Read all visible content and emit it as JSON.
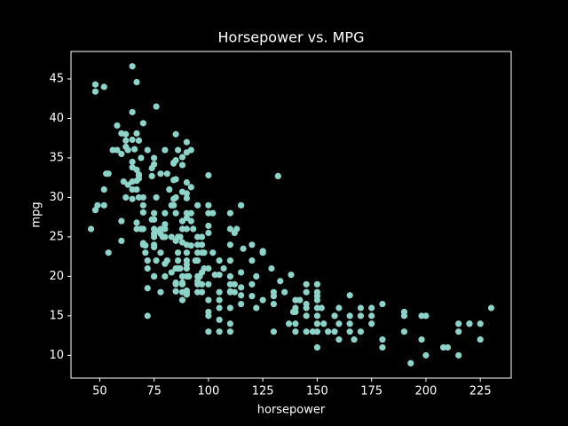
{
  "chart_data": {
    "type": "scatter",
    "title": "Horsepower vs. MPG",
    "x_label": "horsepower",
    "y_label": "mpg",
    "color": "#8dd3c7",
    "xlim": [
      36.8,
      239.2
    ],
    "ylim": [
      7.12,
      48.48
    ],
    "xticks": [
      50,
      75,
      100,
      125,
      150,
      175,
      200,
      225
    ],
    "yticks": [
      10,
      15,
      20,
      25,
      30,
      35,
      40,
      45
    ],
    "x": [
      130,
      165,
      150,
      150,
      140,
      198,
      220,
      215,
      225,
      190,
      170,
      160,
      150,
      95,
      95,
      97,
      85,
      88,
      46,
      87,
      90,
      113,
      90,
      215,
      200,
      210,
      193,
      90,
      95,
      100,
      105,
      100,
      88,
      165,
      175,
      153,
      180,
      170,
      110,
      72,
      86,
      70,
      76,
      65,
      69,
      60,
      70,
      80,
      54,
      90,
      86,
      165,
      150,
      208,
      155,
      160,
      190,
      97,
      130,
      140,
      112,
      76,
      87,
      69,
      86,
      92,
      97,
      80,
      145,
      137,
      198,
      158,
      215,
      225,
      105,
      88,
      95,
      150,
      167,
      180,
      88,
      72,
      94,
      90,
      85,
      107,
      90,
      145,
      230,
      49,
      75,
      91,
      112,
      110,
      122,
      95,
      100,
      67,
      80,
      65,
      75,
      110,
      140,
      150,
      150,
      140,
      83,
      67,
      78,
      52,
      61,
      75,
      75,
      97,
      93,
      95,
      72,
      170,
      145,
      148,
      110,
      105,
      95,
      110,
      129,
      75,
      100,
      78,
      96,
      71,
      97,
      70,
      95,
      98,
      58,
      86,
      81,
      79,
      83,
      120,
      152,
      100,
      105,
      81,
      90,
      52,
      62,
      70,
      53,
      78,
      110,
      72,
      150,
      80,
      145,
      145,
      130,
      110,
      105,
      100,
      78,
      88,
      83,
      140,
      139,
      85,
      88,
      100,
      90,
      85,
      120,
      68,
      90,
      75,
      95,
      105,
      85,
      97,
      103,
      115,
      133,
      115,
      85,
      88,
      90,
      110,
      130,
      138,
      125,
      71,
      80,
      90,
      115,
      115,
      90,
      90,
      88,
      90,
      90,
      78,
      90,
      75,
      92,
      75,
      65,
      65,
      48,
      67,
      67,
      76,
      67,
      67,
      62,
      132,
      100,
      88,
      84,
      84,
      92,
      84,
      65,
      60,
      65,
      48,
      48,
      62,
      68,
      67,
      65,
      65,
      74,
      75,
      75,
      100,
      74,
      80,
      76,
      116,
      88,
      85,
      85,
      85,
      84,
      90,
      74,
      68,
      68,
      63,
      70,
      88,
      75,
      70,
      85,
      92,
      84,
      52,
      82,
      58,
      60,
      62,
      63,
      66,
      68,
      70,
      72,
      54,
      56,
      60,
      80,
      86,
      92,
      100,
      102,
      110,
      115,
      125,
      110,
      112,
      120,
      165,
      190,
      200,
      220,
      175,
      175,
      180,
      160,
      158,
      150,
      145,
      142,
      135,
      120,
      125,
      122,
      110,
      105,
      100,
      102,
      98
    ],
    "y": [
      18,
      15,
      18,
      16,
      17,
      15,
      14,
      14,
      14,
      15,
      15,
      14,
      15,
      24,
      22,
      18,
      21,
      27,
      26,
      25,
      24,
      26,
      21,
      10,
      10,
      11,
      9,
      28,
      25,
      19,
      16,
      17,
      19,
      14,
      14,
      14,
      12,
      13,
      18,
      22,
      23,
      30,
      30,
      31,
      35,
      27,
      26,
      25,
      23,
      20,
      21,
      13,
      17,
      11,
      13,
      12,
      13,
      19,
      13,
      13,
      18,
      22,
      21,
      26,
      22,
      28,
      23,
      28,
      13,
      14,
      12,
      13,
      13,
      12,
      18,
      18,
      23,
      11,
      12,
      11,
      20,
      21,
      22,
      18,
      19,
      21,
      26,
      15,
      16,
      29,
      24,
      20,
      19,
      24,
      20,
      20,
      15,
      31,
      26,
      32,
      25,
      16,
      16,
      13,
      14,
      14,
      29,
      26,
      26,
      31,
      32,
      28,
      26,
      24,
      26,
      19,
      15,
      16,
      16,
      13,
      14,
      17,
      18,
      19,
      21,
      20,
      29,
      23,
      20,
      23,
      25,
      24,
      29,
      23,
      36,
      25,
      33,
      25,
      25,
      17.5,
      16,
      15.5,
      14.5,
      22,
      22,
      29,
      30,
      29,
      33,
      33,
      20,
      18.5,
      17.5,
      20,
      19,
      16.5,
      16.5,
      13,
      13,
      13,
      18,
      17,
      20.5,
      15.5,
      15.5,
      24.5,
      26,
      25.5,
      30.5,
      30,
      22,
      32.8,
      37,
      20,
      19.4,
      20.2,
      19.2,
      20.5,
      20.2,
      20.5,
      19.4,
      18.6,
      18.1,
      19.2,
      17.7,
      18.1,
      17.5,
      20.2,
      23.2,
      23.9,
      21.6,
      21.5,
      17.6,
      16.5,
      18.2,
      31.9,
      34.1,
      35.7,
      27.4,
      25.4,
      23,
      27.2,
      23.9,
      34.2,
      34.5,
      37.3,
      28.4,
      26.8,
      33.5,
      41.5,
      38.1,
      32.1,
      37.2,
      32.7,
      26.4,
      24.3,
      34.3,
      29.8,
      31.3,
      32.2,
      46.6,
      24.5,
      40.8,
      44.3,
      43.4,
      36.4,
      30,
      44.6,
      33.8,
      29.8,
      32.7,
      23.7,
      35,
      32.8,
      27.2,
      26.6,
      25.8,
      23.5,
      35.1,
      32.3,
      38,
      34.7,
      34.4,
      29.9,
      33.7,
      32.4,
      32.9,
      31.6,
      28.1,
      30.7,
      25.4,
      24.2,
      28,
      27,
      29,
      44,
      31,
      39.1,
      38.1,
      38,
      36,
      36.1,
      37.2,
      39.4,
      36,
      33,
      36,
      35.5,
      36,
      36,
      36,
      28,
      28,
      28,
      29,
      23,
      26,
      25.5,
      24,
      17.6,
      15.5,
      15,
      14,
      16,
      15,
      16.5,
      16,
      15,
      19,
      18,
      17,
      18,
      19,
      17,
      16,
      22,
      22,
      21,
      23,
      21
    ]
  }
}
